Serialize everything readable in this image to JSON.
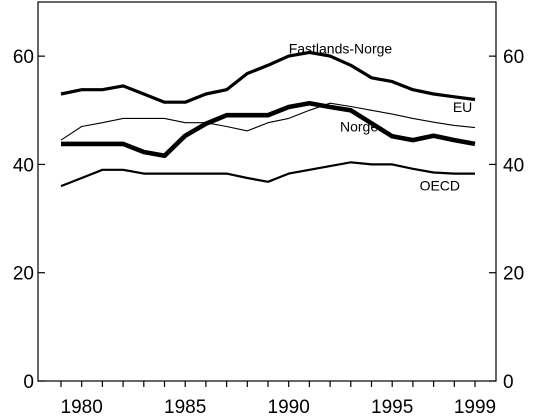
{
  "chart_data": {
    "type": "line",
    "title": "",
    "xlabel": "",
    "ylabel": "",
    "x": [
      1979,
      1980,
      1981,
      1982,
      1983,
      1984,
      1985,
      1986,
      1987,
      1988,
      1989,
      1990,
      1991,
      1992,
      1993,
      1994,
      1995,
      1996,
      1997,
      1998,
      1999
    ],
    "xticks": [
      "1980",
      "1985",
      "1990",
      "1995",
      "1999"
    ],
    "xtick_values": [
      1980,
      1985,
      1990,
      1995,
      1999
    ],
    "yticks_left": [
      "0",
      "20",
      "40",
      "60"
    ],
    "yticks_right": [
      "0",
      "20",
      "40",
      "60"
    ],
    "ytick_values": [
      0,
      20,
      40,
      60
    ],
    "xlim": [
      1979,
      1999
    ],
    "ylim": [
      0,
      70
    ],
    "grid": false,
    "legend": "inline labels next to lines",
    "series": [
      {
        "name": "Fastlands-Norge",
        "label_at": [
          1992.5,
          60.5
        ],
        "stroke": "thick",
        "values": [
          53.0,
          53.8,
          53.8,
          54.5,
          53.0,
          51.5,
          51.5,
          53.0,
          53.8,
          56.8,
          58.3,
          60.0,
          60.7,
          60.0,
          58.3,
          56.0,
          55.3,
          53.8,
          53.0,
          52.5,
          52.0
        ]
      },
      {
        "name": "EU",
        "label_at": [
          1998.4,
          49.7
        ],
        "stroke": "thin",
        "values": [
          44.5,
          47.0,
          47.7,
          48.5,
          48.5,
          48.5,
          47.7,
          47.7,
          47.0,
          46.2,
          47.7,
          48.5,
          50.0,
          51.3,
          50.7,
          50.0,
          49.3,
          48.5,
          47.8,
          47.2,
          46.8
        ]
      },
      {
        "name": "Norge",
        "label_at": [
          1993.4,
          46.1
        ],
        "stroke": "extra-thick",
        "values": [
          43.8,
          43.8,
          43.8,
          43.8,
          42.3,
          41.6,
          45.3,
          47.5,
          49.1,
          49.1,
          49.1,
          50.6,
          51.3,
          50.6,
          50.0,
          47.6,
          45.2,
          44.5,
          45.3,
          44.5,
          43.8
        ]
      },
      {
        "name": "OECD",
        "label_at": [
          1997.3,
          35.2
        ],
        "stroke": "medium",
        "values": [
          36.0,
          37.5,
          39.0,
          39.0,
          38.3,
          38.3,
          38.3,
          38.3,
          38.3,
          37.5,
          36.8,
          38.3,
          39.0,
          39.7,
          40.4,
          40.0,
          40.0,
          39.2,
          38.5,
          38.3,
          38.3
        ]
      }
    ]
  }
}
